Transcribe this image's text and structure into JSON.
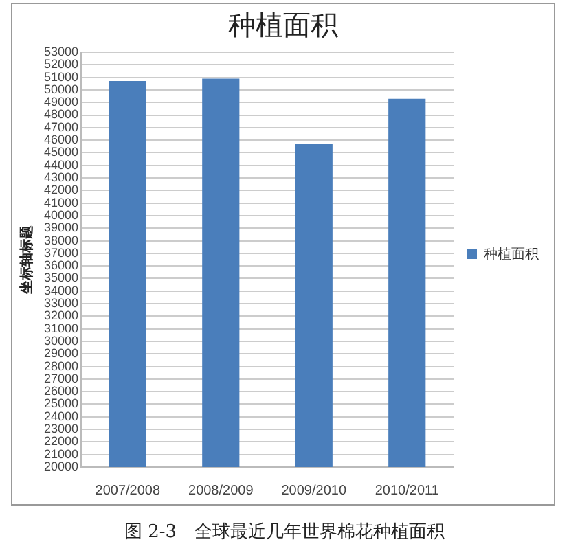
{
  "chart_data": {
    "type": "bar",
    "title": "种植面积",
    "ylabel": "坐标轴标题",
    "categories": [
      "2007/2008",
      "2008/2009",
      "2009/2010",
      "2010/2011"
    ],
    "series": [
      {
        "name": "种植面积",
        "color": "#4a7ebb",
        "values": [
          50700,
          50900,
          45700,
          49300
        ]
      }
    ],
    "ylim": [
      20000,
      53000
    ],
    "yticks": [
      20000,
      21000,
      22000,
      23000,
      24000,
      25000,
      26000,
      27000,
      28000,
      29000,
      30000,
      31000,
      32000,
      33000,
      34000,
      35000,
      36000,
      37000,
      38000,
      39000,
      40000,
      41000,
      42000,
      43000,
      44000,
      45000,
      46000,
      47000,
      48000,
      49000,
      50000,
      51000,
      52000,
      53000
    ],
    "grid": "y",
    "legend": "right",
    "annotations": [
      "图 2-3　全球最近几年世界棉花种植面积"
    ]
  }
}
